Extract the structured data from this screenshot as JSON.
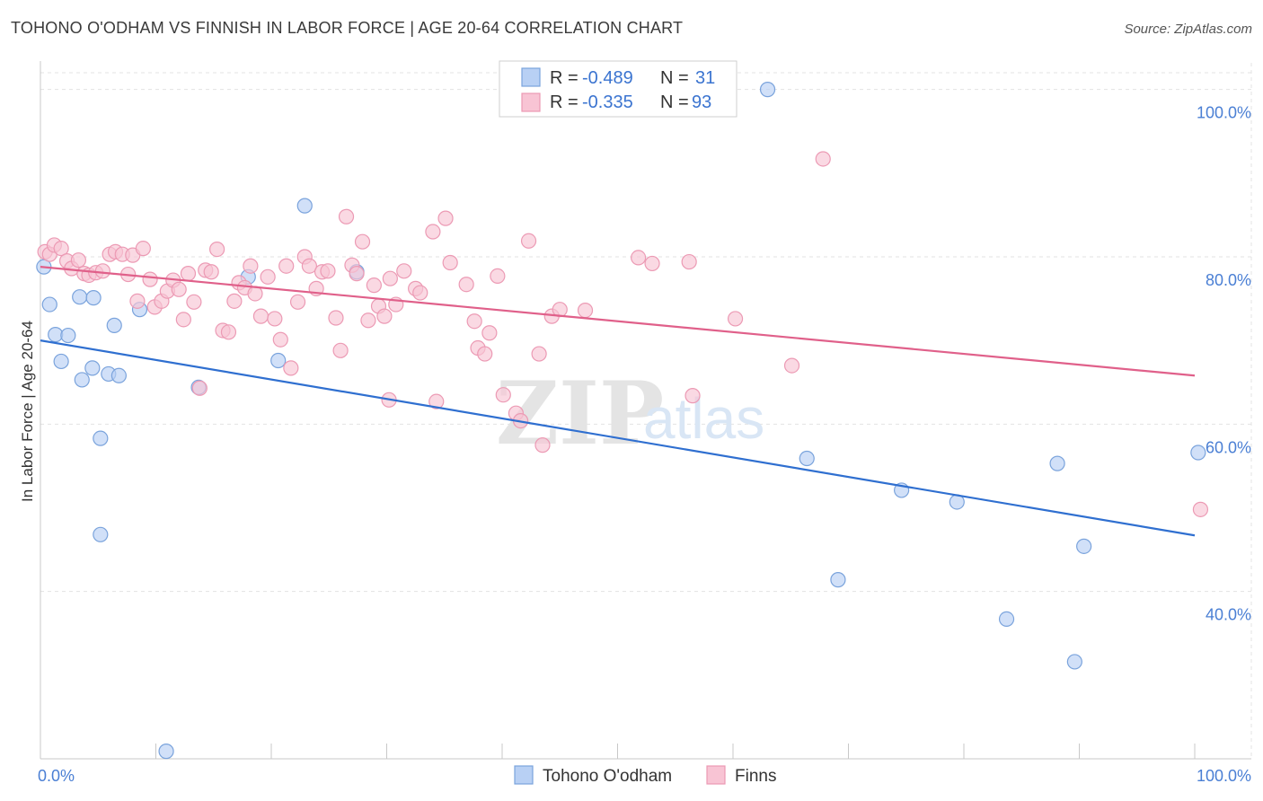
{
  "title": "TOHONO O'ODHAM VS FINNISH IN LABOR FORCE | AGE 20-64 CORRELATION CHART",
  "source": "Source: ZipAtlas.com",
  "watermark": {
    "zip": "ZIP",
    "atlas": "atlas"
  },
  "legend": {
    "rows": [
      {
        "r_label": "R =",
        "r_value": "-0.489",
        "n_label": "N =",
        "n_value": "31"
      },
      {
        "r_label": "R =",
        "r_value": "-0.335",
        "n_label": "N =",
        "n_value": "93"
      }
    ]
  },
  "colors": {
    "tohono_fill": "#b8d0f4",
    "tohono_stroke": "#7aa3dc",
    "tohono_line": "#2f6fd0",
    "finns_fill": "#f8c4d4",
    "finns_stroke": "#ec9ab4",
    "finns_line": "#e0608a",
    "grid": "#e3e3e3",
    "axis_label": "#4a7fd4"
  },
  "chart_data": {
    "type": "scatter",
    "xlabel": "",
    "ylabel": "In Labor Force | Age 20-64",
    "xlim": [
      0,
      100
    ],
    "ylim": [
      20,
      102
    ],
    "x_tick_labels": [
      "0.0%",
      "100.0%"
    ],
    "y_ticks": [
      40,
      60,
      80,
      100
    ],
    "y_tick_labels": [
      "40.0%",
      "60.0%",
      "80.0%",
      "100.0%"
    ],
    "grid": true,
    "legend_position": "top-center",
    "series": [
      {
        "name": "Tohono O'odham",
        "trend": {
          "x": [
            0,
            100
          ],
          "y": [
            70.0,
            46.7
          ]
        },
        "points": [
          [
            0.3,
            78.8
          ],
          [
            0.8,
            74.3
          ],
          [
            1.3,
            70.7
          ],
          [
            1.8,
            67.5
          ],
          [
            2.4,
            70.6
          ],
          [
            3.4,
            75.2
          ],
          [
            3.6,
            65.3
          ],
          [
            4.6,
            75.1
          ],
          [
            4.5,
            66.7
          ],
          [
            5.2,
            58.3
          ],
          [
            5.2,
            46.8
          ],
          [
            5.9,
            66.0
          ],
          [
            6.4,
            71.8
          ],
          [
            6.8,
            65.8
          ],
          [
            8.6,
            73.7
          ],
          [
            10.9,
            20.9
          ],
          [
            13.7,
            64.4
          ],
          [
            18.0,
            77.6
          ],
          [
            20.6,
            67.6
          ],
          [
            22.9,
            86.1
          ],
          [
            27.4,
            78.2
          ],
          [
            63.0,
            100.0
          ],
          [
            66.4,
            55.9
          ],
          [
            69.1,
            41.4
          ],
          [
            74.6,
            52.1
          ],
          [
            79.4,
            50.7
          ],
          [
            83.7,
            36.7
          ],
          [
            88.1,
            55.3
          ],
          [
            89.6,
            31.6
          ],
          [
            90.4,
            45.4
          ],
          [
            100.3,
            56.6
          ]
        ]
      },
      {
        "name": "Finns",
        "trend": {
          "x": [
            0,
            100
          ],
          "y": [
            78.8,
            65.8
          ]
        },
        "points": [
          [
            0.4,
            80.6
          ],
          [
            0.8,
            80.3
          ],
          [
            1.2,
            81.4
          ],
          [
            1.8,
            81.0
          ],
          [
            2.3,
            79.5
          ],
          [
            2.7,
            78.6
          ],
          [
            3.3,
            79.6
          ],
          [
            3.8,
            78.0
          ],
          [
            4.2,
            77.8
          ],
          [
            4.8,
            78.1
          ],
          [
            5.4,
            78.3
          ],
          [
            6.0,
            80.3
          ],
          [
            6.5,
            80.6
          ],
          [
            7.1,
            80.3
          ],
          [
            7.6,
            77.9
          ],
          [
            8.0,
            80.2
          ],
          [
            8.4,
            74.7
          ],
          [
            8.9,
            81.0
          ],
          [
            9.5,
            77.3
          ],
          [
            9.9,
            74.0
          ],
          [
            10.5,
            74.7
          ],
          [
            11.0,
            75.9
          ],
          [
            11.5,
            77.2
          ],
          [
            12.0,
            76.1
          ],
          [
            12.4,
            72.5
          ],
          [
            12.8,
            78.0
          ],
          [
            13.3,
            74.6
          ],
          [
            13.8,
            64.3
          ],
          [
            14.3,
            78.4
          ],
          [
            14.8,
            78.2
          ],
          [
            15.3,
            80.9
          ],
          [
            15.8,
            71.2
          ],
          [
            16.3,
            71.0
          ],
          [
            16.8,
            74.7
          ],
          [
            17.2,
            76.9
          ],
          [
            17.7,
            76.3
          ],
          [
            18.2,
            78.9
          ],
          [
            18.6,
            75.6
          ],
          [
            19.1,
            72.9
          ],
          [
            19.7,
            77.6
          ],
          [
            20.3,
            72.6
          ],
          [
            20.8,
            70.1
          ],
          [
            21.3,
            78.9
          ],
          [
            21.7,
            66.7
          ],
          [
            22.3,
            74.6
          ],
          [
            22.9,
            80.0
          ],
          [
            23.3,
            78.9
          ],
          [
            23.9,
            76.2
          ],
          [
            24.4,
            78.2
          ],
          [
            24.9,
            78.3
          ],
          [
            25.6,
            72.7
          ],
          [
            26.0,
            68.8
          ],
          [
            26.5,
            84.8
          ],
          [
            27.0,
            79.0
          ],
          [
            27.4,
            78.0
          ],
          [
            27.9,
            81.8
          ],
          [
            28.4,
            72.4
          ],
          [
            28.9,
            76.6
          ],
          [
            29.3,
            74.1
          ],
          [
            29.8,
            72.9
          ],
          [
            30.3,
            77.4
          ],
          [
            30.8,
            74.3
          ],
          [
            31.5,
            78.3
          ],
          [
            32.5,
            76.2
          ],
          [
            32.9,
            75.7
          ],
          [
            34.0,
            83.0
          ],
          [
            34.3,
            62.7
          ],
          [
            35.1,
            84.6
          ],
          [
            35.5,
            79.3
          ],
          [
            36.9,
            76.7
          ],
          [
            37.6,
            72.3
          ],
          [
            37.9,
            69.1
          ],
          [
            38.5,
            68.4
          ],
          [
            38.9,
            70.9
          ],
          [
            39.6,
            77.7
          ],
          [
            40.1,
            63.5
          ],
          [
            41.2,
            61.3
          ],
          [
            41.6,
            60.4
          ],
          [
            42.3,
            81.9
          ],
          [
            43.2,
            68.4
          ],
          [
            43.5,
            57.5
          ],
          [
            44.3,
            72.9
          ],
          [
            45.0,
            73.7
          ],
          [
            47.2,
            73.6
          ],
          [
            51.8,
            79.9
          ],
          [
            53.0,
            79.2
          ],
          [
            56.2,
            79.4
          ],
          [
            56.5,
            63.4
          ],
          [
            60.2,
            72.6
          ],
          [
            65.1,
            67.0
          ],
          [
            67.8,
            91.7
          ],
          [
            100.5,
            49.8
          ],
          [
            30.2,
            62.9
          ]
        ]
      }
    ]
  },
  "bottom_legend": [
    "Tohono O'odham",
    "Finns"
  ]
}
